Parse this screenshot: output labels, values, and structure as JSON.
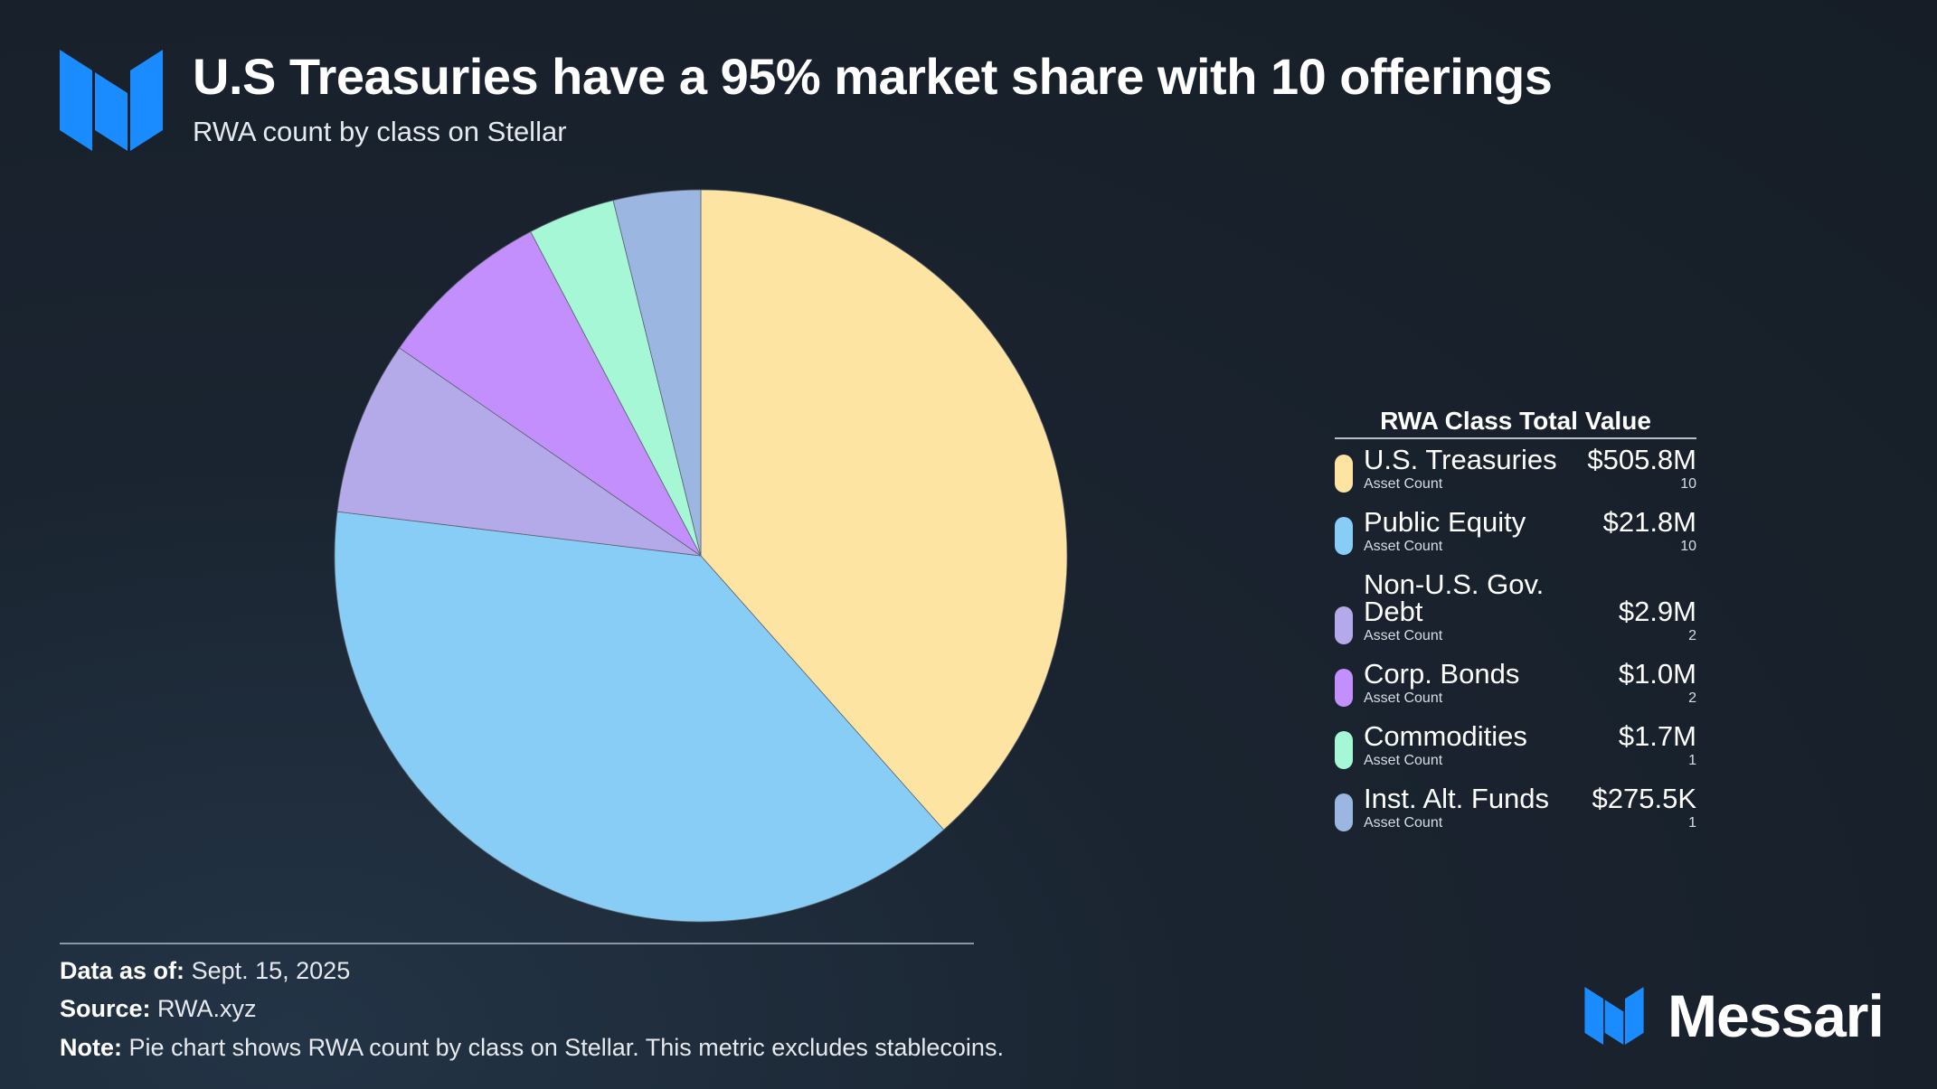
{
  "header": {
    "title": "U.S Treasuries have a 95% market share with 10 offerings",
    "subtitle": "RWA count by class on Stellar"
  },
  "legend": {
    "header": "RWA Class Total Value",
    "count_label": "Asset Count"
  },
  "footer": {
    "data_as_of_label": "Data as of:",
    "data_as_of_value": "Sept. 15, 2025",
    "source_label": "Source:",
    "source_value": "RWA.xyz",
    "note_label": "Note:",
    "note_value": "Pie chart shows RWA count by class on Stellar. This metric excludes stablecoins."
  },
  "brand": {
    "name": "Messari",
    "icon": "messari-logo-icon"
  },
  "colors": {
    "logo_blue": "#1a8cff",
    "treasuries": "#fde4a3",
    "public_equity": "#87cdf5",
    "non_us_gov_debt": "#b4aae9",
    "corp_bonds": "#c38ffd",
    "commodities": "#a6f7d6",
    "inst_alt_funds": "#9bb6e0"
  },
  "chart_data": {
    "type": "pie",
    "title": "U.S Treasuries have a 95% market share with 10 offerings",
    "subtitle": "RWA count by class on Stellar",
    "start_angle_deg": 0,
    "direction": "clockwise",
    "series": [
      {
        "name": "U.S. Treasuries",
        "value": 10,
        "total_value": "$505.8M",
        "count": "10",
        "color": "#fde4a3"
      },
      {
        "name": "Public Equity",
        "value": 10,
        "total_value": "$21.8M",
        "count": "10",
        "color": "#87cdf5"
      },
      {
        "name": "Non-U.S. Gov. Debt",
        "value": 2,
        "total_value": "$2.9M",
        "count": "2",
        "color": "#b4aae9"
      },
      {
        "name": "Corp. Bonds",
        "value": 2,
        "total_value": "$1.0M",
        "count": "2",
        "color": "#c38ffd"
      },
      {
        "name": "Commodities",
        "value": 1,
        "total_value": "$1.7M",
        "count": "1",
        "color": "#a6f7d6"
      },
      {
        "name": "Inst. Alt. Funds",
        "value": 1,
        "total_value": "$275.5K",
        "count": "1",
        "color": "#9bb6e0"
      }
    ],
    "legend": "right"
  }
}
